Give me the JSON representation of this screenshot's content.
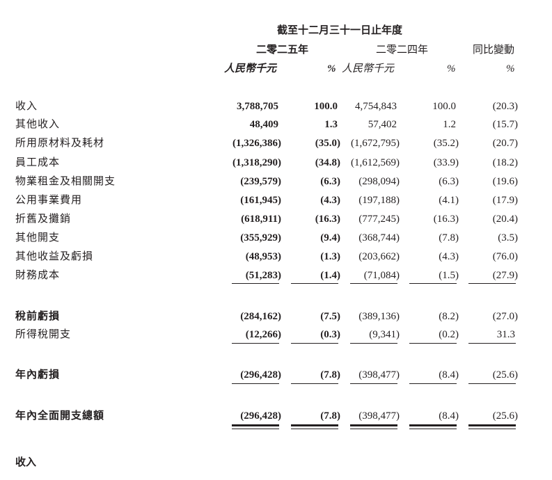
{
  "header": {
    "period": "截至十二月三十一日止年度",
    "year_2025": "二零二五年",
    "year_2024": "二零二四年",
    "yoy": "同比變動",
    "unit_2025": "人民幣千元",
    "pct_2025": "%",
    "unit_2024": "人民幣千元",
    "pct_2024": "%",
    "pct_yoy": "%"
  },
  "rows": [
    {
      "label": "收入",
      "values": [
        "3,788,705",
        "100.0",
        "4,754,843",
        "100.0",
        "(20.3)"
      ]
    },
    {
      "label": "其他收入",
      "values": [
        "48,409",
        "1.3",
        "57,402",
        "1.2",
        "(15.7)"
      ]
    },
    {
      "label": "所用原材料及耗材",
      "values": [
        "(1,326,386)",
        "(35.0)",
        "(1,672,795)",
        "(35.2)",
        "(20.7)"
      ]
    },
    {
      "label": "員工成本",
      "values": [
        "(1,318,290)",
        "(34.8)",
        "(1,612,569)",
        "(33.9)",
        "(18.2)"
      ]
    },
    {
      "label": "物業租金及相關開支",
      "values": [
        "(239,579)",
        "(6.3)",
        "(298,094)",
        "(6.3)",
        "(19.6)"
      ]
    },
    {
      "label": "公用事業費用",
      "values": [
        "(161,945)",
        "(4.3)",
        "(197,188)",
        "(4.1)",
        "(17.9)"
      ]
    },
    {
      "label": "折舊及攤銷",
      "values": [
        "(618,911)",
        "(16.3)",
        "(777,245)",
        "(16.3)",
        "(20.4)"
      ]
    },
    {
      "label": "其他開支",
      "values": [
        "(355,929)",
        "(9.4)",
        "(368,744)",
        "(7.8)",
        "(3.5)"
      ]
    },
    {
      "label": "其他收益及虧損",
      "values": [
        "(48,953)",
        "(1.3)",
        "(203,662)",
        "(4.3)",
        "(76.0)"
      ]
    },
    {
      "label": "財務成本",
      "values": [
        "(51,283)",
        "(1.4)",
        "(71,084)",
        "(1.5)",
        "(27.9)"
      ]
    },
    {
      "label": "稅前虧損",
      "values": [
        "(284,162)",
        "(7.5)",
        "(389,136)",
        "(8.2)",
        "(27.0)"
      ]
    },
    {
      "label": "所得稅開支",
      "values": [
        "(12,266)",
        "(0.3)",
        "(9,341)",
        "(0.2)",
        "31.3"
      ]
    },
    {
      "label": "年內虧損",
      "values": [
        "(296,428)",
        "(7.8)",
        "(398,477)",
        "(8.4)",
        "(25.6)"
      ]
    },
    {
      "label": "年內全面開支總額",
      "values": [
        "(296,428)",
        "(7.8)",
        "(398,477)",
        "(8.4)",
        "(25.6)"
      ]
    }
  ],
  "section_heading": "收入"
}
